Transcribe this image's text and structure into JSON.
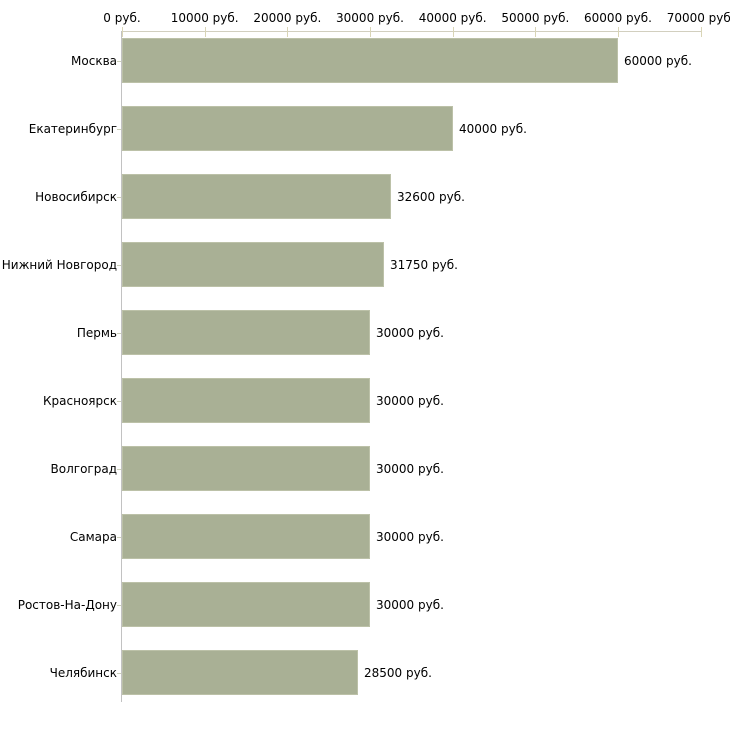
{
  "chart_data": {
    "type": "bar",
    "orientation": "horizontal",
    "title": "",
    "unit": "руб.",
    "categories": [
      "Москва",
      "Екатеринбург",
      "Новосибирск",
      "Нижний Новгород",
      "Пермь",
      "Красноярск",
      "Волгоград",
      "Самара",
      "Ростов-На-Дону",
      "Челябинск"
    ],
    "values": [
      60000,
      40000,
      32600,
      31750,
      30000,
      30000,
      30000,
      30000,
      30000,
      28500
    ],
    "value_labels": [
      "60000 руб.",
      "40000 руб.",
      "32600 руб.",
      "31750 руб.",
      "30000 руб.",
      "30000 руб.",
      "30000 руб.",
      "30000 руб.",
      "30000 руб.",
      "28500 руб."
    ],
    "x_axis": {
      "position": "top",
      "range": [
        0,
        70000
      ],
      "ticks": [
        0,
        10000,
        20000,
        30000,
        40000,
        50000,
        60000,
        70000
      ],
      "tick_labels": [
        "0 руб.",
        "10000 руб.",
        "20000 руб.",
        "30000 руб.",
        "40000 руб.",
        "50000 руб.",
        "60000 руб.",
        "70000 руб."
      ]
    },
    "grid": false,
    "legend": false,
    "colors": {
      "bar": "#a9b095",
      "bar_border": "#bcc1a8",
      "x_axis_line": "#d2cfbf",
      "x_tick": "#d9d5b6",
      "y_axis_line": "#c2c2c2",
      "y_tick": "#ccd0ba",
      "text": "#000000",
      "background": "#ffffff"
    }
  }
}
